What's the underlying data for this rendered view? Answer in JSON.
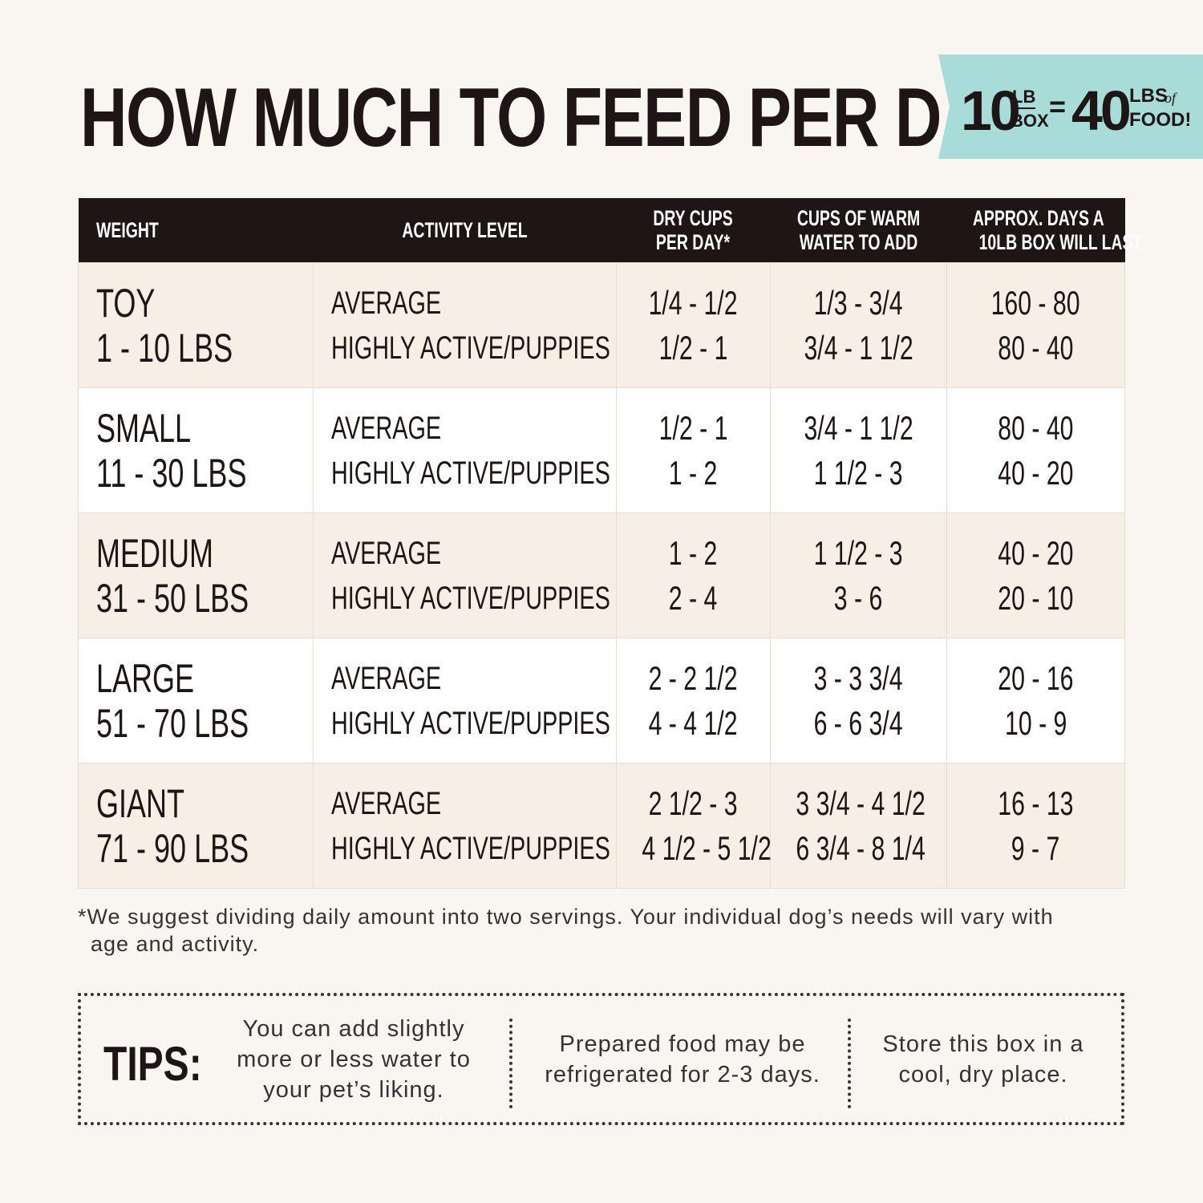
{
  "header": {
    "title": "HOW MUCH TO FEED PER DAY",
    "badge": {
      "box_amount": "10",
      "box_unit_top": "LB",
      "box_unit_bottom": "BOX",
      "equals": "=",
      "food_amount": "40",
      "food_unit_top": "LBS",
      "food_unit_of": "of",
      "food_unit_bottom": "FOOD!"
    }
  },
  "table": {
    "headers": [
      [
        "WEIGHT"
      ],
      [
        "ACTIVITY LEVEL"
      ],
      [
        "DRY CUPS",
        "PER DAY*"
      ],
      [
        "CUPS OF WARM",
        "WATER TO ADD"
      ],
      [
        "APPROX. DAYS A",
        "10LB BOX WILL LAST"
      ]
    ],
    "rows": [
      {
        "size": "TOY",
        "weight": "1 - 10 LBS",
        "activity": [
          "AVERAGE",
          "HIGHLY ACTIVE/PUPPIES"
        ],
        "dry_cups": [
          "1/4 - 1/2",
          "1/2 - 1"
        ],
        "water": [
          "1/3 - 3/4",
          "3/4 - 1 1/2"
        ],
        "days": [
          "160 - 80",
          "80 - 40"
        ]
      },
      {
        "size": "SMALL",
        "weight": "11 - 30 LBS",
        "activity": [
          "AVERAGE",
          "HIGHLY ACTIVE/PUPPIES"
        ],
        "dry_cups": [
          "1/2 - 1",
          "1 - 2"
        ],
        "water": [
          "3/4 - 1 1/2",
          "1 1/2 - 3"
        ],
        "days": [
          "80 - 40",
          "40 - 20"
        ]
      },
      {
        "size": "MEDIUM",
        "weight": "31 - 50 LBS",
        "activity": [
          "AVERAGE",
          "HIGHLY ACTIVE/PUPPIES"
        ],
        "dry_cups": [
          "1 - 2",
          "2 - 4"
        ],
        "water": [
          "1 1/2 - 3",
          "3 - 6"
        ],
        "days": [
          "40 - 20",
          "20 - 10"
        ]
      },
      {
        "size": "LARGE",
        "weight": "51 - 70 LBS",
        "activity": [
          "AVERAGE",
          "HIGHLY ACTIVE/PUPPIES"
        ],
        "dry_cups": [
          "2 - 2 1/2",
          "4 - 4 1/2"
        ],
        "water": [
          "3 - 3 3/4",
          "6 - 6 3/4"
        ],
        "days": [
          "20 - 16",
          "10 - 9"
        ]
      },
      {
        "size": "GIANT",
        "weight": "71 - 90 LBS",
        "activity": [
          "AVERAGE",
          "HIGHLY ACTIVE/PUPPIES"
        ],
        "dry_cups": [
          "2 1/2 - 3",
          "4 1/2 - 5 1/2"
        ],
        "water": [
          "3 3/4 - 4 1/2",
          "6 3/4 - 8 1/4"
        ],
        "days": [
          "16 - 13",
          "9 - 7"
        ]
      }
    ]
  },
  "footnote": "*We suggest dividing daily amount into two servings. Your individual dog’s needs will vary with age and activity.",
  "tips": {
    "label": "TIPS:",
    "items": [
      "You can add slightly more or less water to your pet’s liking.",
      "Prepared food may be refrigerated for 2-3 days.",
      "Store this box in a cool, dry place."
    ]
  }
}
